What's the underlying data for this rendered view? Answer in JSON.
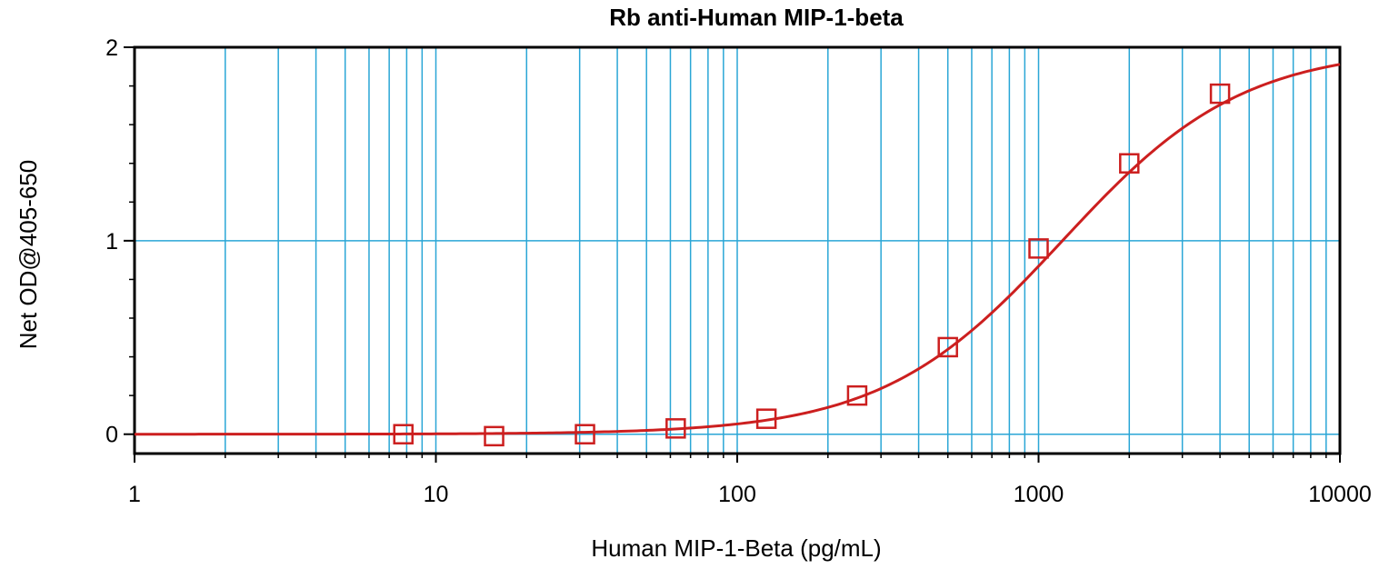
{
  "chart_data": {
    "type": "scatter",
    "title": "Rb anti-Human MIP-1-beta",
    "xlabel": "Human MIP-1-Beta (pg/mL)",
    "ylabel": "Net OD@405-650",
    "x_scale": "log",
    "xlim": [
      1,
      10000
    ],
    "ylim": [
      -0.1,
      2
    ],
    "x_ticks": [
      1,
      10,
      100,
      1000,
      10000
    ],
    "x_tick_labels": [
      "1",
      "10",
      "100",
      "1000",
      "10000"
    ],
    "y_ticks": [
      0,
      1,
      2
    ],
    "y_tick_labels": [
      "0",
      "1",
      "2"
    ],
    "grid": true,
    "colors": {
      "grid": "#2aa6d6",
      "series": "#cc1f1f",
      "axis": "#000000"
    },
    "series": [
      {
        "marker": "square",
        "x": [
          7.8,
          15.6,
          31.25,
          62.5,
          125,
          250,
          500,
          1000,
          2000,
          4000
        ],
        "y": [
          0.0,
          -0.01,
          0.0,
          0.03,
          0.08,
          0.2,
          0.45,
          0.96,
          1.4,
          1.76
        ]
      }
    ],
    "fit_curve": {
      "type": "4PL",
      "bottom": 0.0,
      "top": 2.0,
      "ec50": 1200,
      "hill": 1.45,
      "x_range": [
        1,
        10000
      ]
    }
  }
}
